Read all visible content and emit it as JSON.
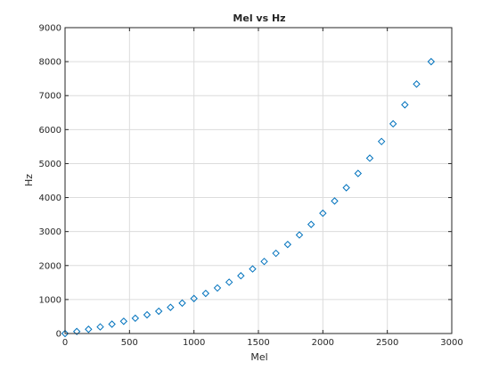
{
  "chart_data": {
    "type": "scatter",
    "title": "Mel vs Hz",
    "xlabel": "Mel",
    "ylabel": "Hz",
    "xlim": [
      0,
      3000
    ],
    "ylim": [
      0,
      9000
    ],
    "x_ticks": [
      0,
      500,
      1000,
      1500,
      2000,
      2500,
      3000
    ],
    "y_ticks": [
      0,
      1000,
      2000,
      3000,
      4000,
      5000,
      6000,
      7000,
      8000,
      9000
    ],
    "grid": true,
    "marker": "diamond",
    "marker_color": "#0072bd",
    "series": [
      {
        "x": [
          0,
          91,
          182,
          273,
          364,
          455,
          545,
          636,
          727,
          818,
          909,
          1000,
          1091,
          1182,
          1273,
          1364,
          1455,
          1545,
          1636,
          1727,
          1818,
          1909,
          2000,
          2091,
          2182,
          2273,
          2364,
          2455,
          2545,
          2636,
          2727,
          2840
        ],
        "y": [
          0,
          60,
          125,
          195,
          275,
          360,
          450,
          550,
          655,
          770,
          895,
          1030,
          1180,
          1340,
          1510,
          1700,
          1900,
          2120,
          2360,
          2620,
          2900,
          3210,
          3540,
          3900,
          4290,
          4710,
          5160,
          5650,
          6170,
          6730,
          7340,
          8000
        ]
      }
    ]
  }
}
